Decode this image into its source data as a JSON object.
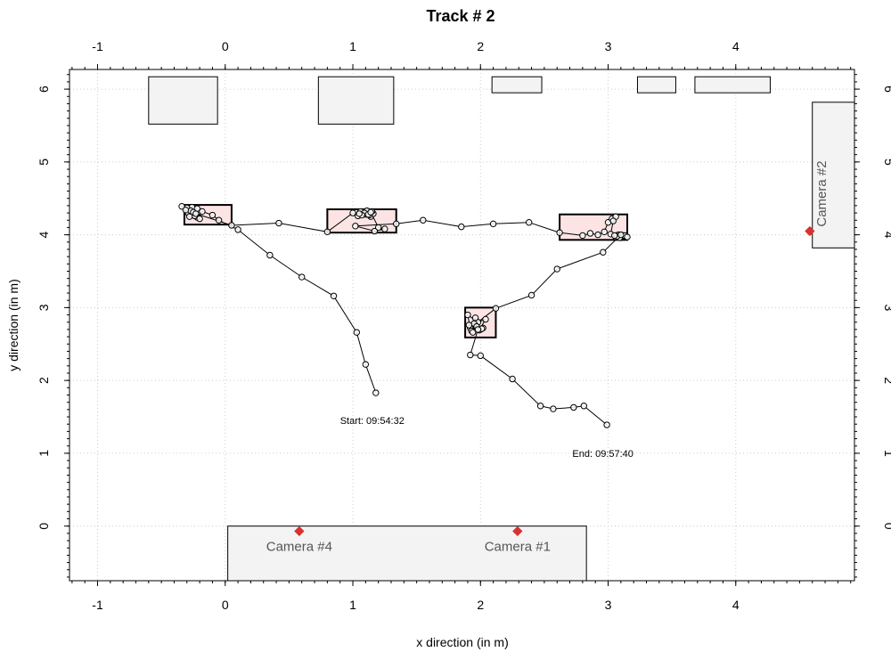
{
  "chart_data": {
    "type": "scatter",
    "title": "Track #  2",
    "xlabel": "x direction (in m)",
    "ylabel": "y direction (in m)",
    "xlim": [
      -1.22,
      4.93
    ],
    "ylim": [
      -0.75,
      6.27
    ],
    "x_ticks": [
      -1,
      0,
      1,
      2,
      3,
      4
    ],
    "y_ticks": [
      0,
      1,
      2,
      3,
      4,
      5,
      6
    ],
    "grid": true,
    "colors": {
      "track": "#000000",
      "zone_fill": "#fce4e4",
      "furniture_fill": "#f3f3f3",
      "camera_marker": "#d93030",
      "grid": "#cccccc"
    },
    "furniture": [
      {
        "x0": -0.6,
        "x1": -0.06,
        "y0": 5.52,
        "y1": 6.17
      },
      {
        "x0": 0.73,
        "x1": 1.32,
        "y0": 5.52,
        "y1": 6.17
      },
      {
        "x0": 2.09,
        "x1": 2.48,
        "y0": 5.95,
        "y1": 6.17
      },
      {
        "x0": 3.23,
        "x1": 3.53,
        "y0": 5.95,
        "y1": 6.17
      },
      {
        "x0": 3.68,
        "x1": 4.27,
        "y0": 5.95,
        "y1": 6.17
      },
      {
        "x0": 4.6,
        "x1": 4.93,
        "y0": 3.82,
        "y1": 5.82
      },
      {
        "x0": 0.02,
        "x1": 2.83,
        "y0": -0.75,
        "y1": 0.0
      }
    ],
    "zones": [
      {
        "x0": -0.32,
        "x1": 0.05,
        "y0": 4.14,
        "y1": 4.41
      },
      {
        "x0": 0.8,
        "x1": 1.34,
        "y0": 4.03,
        "y1": 4.35
      },
      {
        "x0": 1.88,
        "x1": 2.12,
        "y0": 2.59,
        "y1": 3.0
      },
      {
        "x0": 2.62,
        "x1": 3.15,
        "y0": 3.93,
        "y1": 4.28
      }
    ],
    "track": [
      {
        "x": 1.18,
        "y": 1.83
      },
      {
        "x": 1.1,
        "y": 2.22
      },
      {
        "x": 1.03,
        "y": 2.66
      },
      {
        "x": 0.85,
        "y": 3.16
      },
      {
        "x": 0.6,
        "y": 3.42
      },
      {
        "x": 0.35,
        "y": 3.72
      },
      {
        "x": 0.1,
        "y": 4.07
      },
      {
        "x": -0.05,
        "y": 4.2
      },
      {
        "x": -0.1,
        "y": 4.27
      },
      {
        "x": -0.18,
        "y": 4.32
      },
      {
        "x": -0.22,
        "y": 4.24
      },
      {
        "x": -0.25,
        "y": 4.35
      },
      {
        "x": -0.27,
        "y": 4.28
      },
      {
        "x": -0.26,
        "y": 4.38
      },
      {
        "x": -0.29,
        "y": 4.3
      },
      {
        "x": -0.24,
        "y": 4.26
      },
      {
        "x": -0.3,
        "y": 4.37
      },
      {
        "x": -0.27,
        "y": 4.33
      },
      {
        "x": -0.22,
        "y": 4.36
      },
      {
        "x": -0.34,
        "y": 4.39
      },
      {
        "x": -0.28,
        "y": 4.25
      },
      {
        "x": -0.2,
        "y": 4.22
      },
      {
        "x": -0.25,
        "y": 4.31
      },
      {
        "x": -0.31,
        "y": 4.34
      },
      {
        "x": -0.23,
        "y": 4.29
      },
      {
        "x": 0.05,
        "y": 4.13
      },
      {
        "x": 0.42,
        "y": 4.16
      },
      {
        "x": 0.8,
        "y": 4.04
      },
      {
        "x": 1.0,
        "y": 4.3
      },
      {
        "x": 1.04,
        "y": 4.26
      },
      {
        "x": 1.08,
        "y": 4.31
      },
      {
        "x": 1.1,
        "y": 4.28
      },
      {
        "x": 1.06,
        "y": 4.32
      },
      {
        "x": 1.12,
        "y": 4.3
      },
      {
        "x": 1.14,
        "y": 4.25
      },
      {
        "x": 1.11,
        "y": 4.33
      },
      {
        "x": 1.16,
        "y": 4.29
      },
      {
        "x": 1.13,
        "y": 4.27
      },
      {
        "x": 1.09,
        "y": 4.3
      },
      {
        "x": 1.15,
        "y": 4.32
      },
      {
        "x": 1.12,
        "y": 4.28
      },
      {
        "x": 1.07,
        "y": 4.27
      },
      {
        "x": 1.05,
        "y": 4.29
      },
      {
        "x": 1.14,
        "y": 4.31
      },
      {
        "x": 1.2,
        "y": 4.1
      },
      {
        "x": 1.25,
        "y": 4.08
      },
      {
        "x": 1.17,
        "y": 4.05
      },
      {
        "x": 1.02,
        "y": 4.12
      },
      {
        "x": 1.34,
        "y": 4.15
      },
      {
        "x": 1.55,
        "y": 4.2
      },
      {
        "x": 1.85,
        "y": 4.11
      },
      {
        "x": 2.1,
        "y": 4.15
      },
      {
        "x": 2.38,
        "y": 4.17
      },
      {
        "x": 2.62,
        "y": 4.03
      },
      {
        "x": 2.8,
        "y": 3.99
      },
      {
        "x": 2.86,
        "y": 4.02
      },
      {
        "x": 2.92,
        "y": 4.0
      },
      {
        "x": 2.97,
        "y": 4.04
      },
      {
        "x": 3.0,
        "y": 4.17
      },
      {
        "x": 3.03,
        "y": 4.22
      },
      {
        "x": 3.06,
        "y": 4.25
      },
      {
        "x": 3.04,
        "y": 4.19
      },
      {
        "x": 3.02,
        "y": 4.01
      },
      {
        "x": 3.06,
        "y": 3.97
      },
      {
        "x": 3.08,
        "y": 4.0
      },
      {
        "x": 3.1,
        "y": 3.96
      },
      {
        "x": 3.12,
        "y": 3.99
      },
      {
        "x": 3.14,
        "y": 3.97
      },
      {
        "x": 3.11,
        "y": 3.98
      },
      {
        "x": 3.09,
        "y": 3.96
      },
      {
        "x": 3.13,
        "y": 3.99
      },
      {
        "x": 3.07,
        "y": 3.98
      },
      {
        "x": 3.15,
        "y": 3.97
      },
      {
        "x": 3.05,
        "y": 3.99
      },
      {
        "x": 3.1,
        "y": 4.0
      },
      {
        "x": 2.96,
        "y": 3.76
      },
      {
        "x": 2.6,
        "y": 3.53
      },
      {
        "x": 2.4,
        "y": 3.17
      },
      {
        "x": 2.12,
        "y": 2.99
      },
      {
        "x": 1.98,
        "y": 2.8
      },
      {
        "x": 1.9,
        "y": 2.9
      },
      {
        "x": 1.92,
        "y": 2.72
      },
      {
        "x": 1.95,
        "y": 2.78
      },
      {
        "x": 1.93,
        "y": 2.68
      },
      {
        "x": 1.97,
        "y": 2.74
      },
      {
        "x": 2.0,
        "y": 2.7
      },
      {
        "x": 1.96,
        "y": 2.86
      },
      {
        "x": 1.94,
        "y": 2.66
      },
      {
        "x": 2.02,
        "y": 2.72
      },
      {
        "x": 1.99,
        "y": 2.69
      },
      {
        "x": 2.04,
        "y": 2.84
      },
      {
        "x": 1.91,
        "y": 2.76
      },
      {
        "x": 2.01,
        "y": 2.71
      },
      {
        "x": 1.98,
        "y": 2.7
      },
      {
        "x": 1.92,
        "y": 2.35
      },
      {
        "x": 2.0,
        "y": 2.34
      },
      {
        "x": 2.25,
        "y": 2.02
      },
      {
        "x": 2.47,
        "y": 1.65
      },
      {
        "x": 2.57,
        "y": 1.61
      },
      {
        "x": 2.73,
        "y": 1.63
      },
      {
        "x": 2.81,
        "y": 1.65
      },
      {
        "x": 2.99,
        "y": 1.39
      }
    ],
    "cameras": [
      {
        "label": "Camera #4",
        "x": 0.58,
        "y": -0.07
      },
      {
        "label": "Camera #1",
        "x": 2.29,
        "y": -0.07
      },
      {
        "label": "Camera #2",
        "x": 4.58,
        "y": 4.05
      }
    ],
    "annotations": [
      {
        "text": "Start: 09:54:32",
        "x": 0.9,
        "y": 1.45
      },
      {
        "text": "End: 09:57:40",
        "x": 2.72,
        "y": 1.0
      }
    ]
  }
}
